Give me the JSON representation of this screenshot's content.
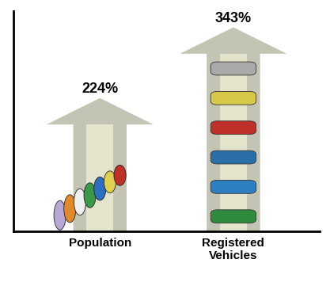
{
  "chart_data": {
    "type": "bar",
    "categories": [
      "Population",
      "Registered Vehicles"
    ],
    "values": [
      224,
      343
    ],
    "value_labels": [
      "224%",
      "343%"
    ],
    "data_labels": true,
    "tick_labels": "x",
    "color": "#c4c4b4",
    "ylim": [
      0,
      370
    ],
    "yticks": []
  }
}
